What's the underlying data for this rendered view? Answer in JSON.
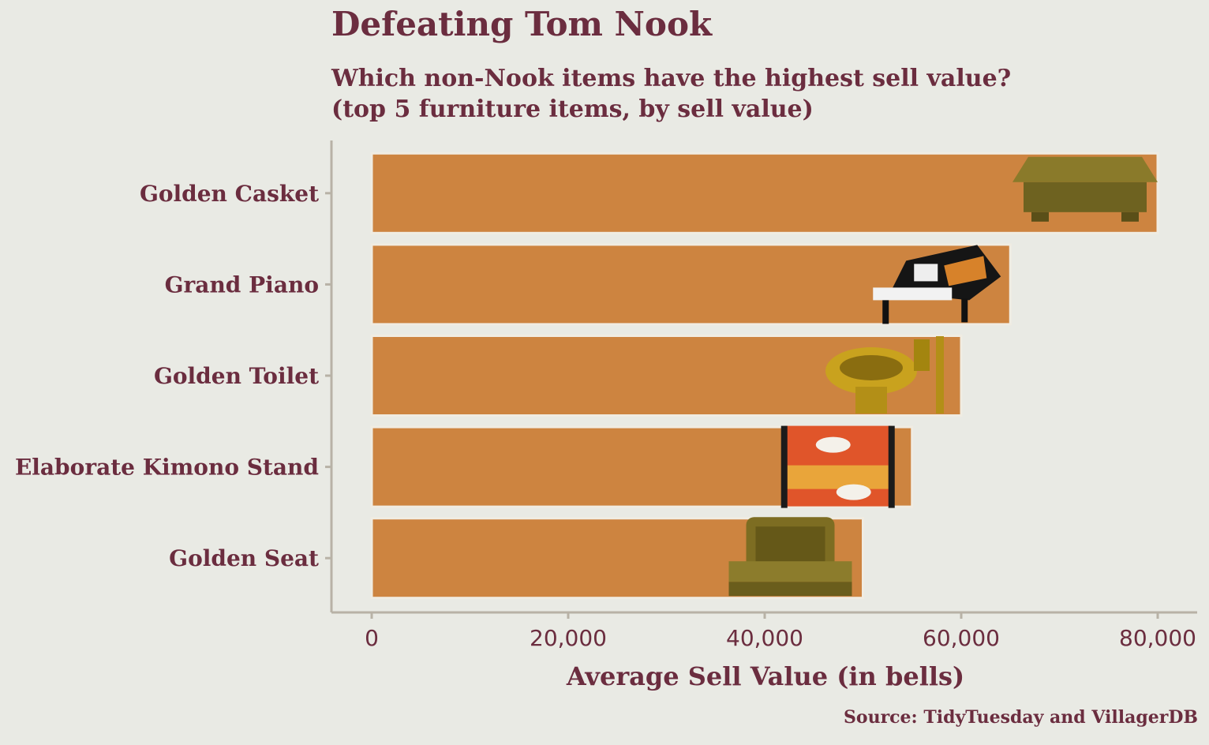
{
  "title": "Defeating Tom Nook",
  "subtitle_line1": "Which non-Nook items have the highest sell value?",
  "subtitle_line2": "(top 5 furniture items, by sell value)",
  "caption": "Source: TidyTuesday and VillagerDB",
  "colors": {
    "background": "#e9eae4",
    "bar": "#cd8440",
    "text": "#6b2d3f",
    "axis": "#b8b2a6"
  },
  "chart_data": {
    "type": "bar",
    "orientation": "horizontal",
    "categories": [
      "Golden Casket",
      "Grand Piano",
      "Golden Toilet",
      "Elaborate Kimono Stand",
      "Golden Seat"
    ],
    "values": [
      80000,
      65000,
      60000,
      55000,
      50000
    ],
    "icons": [
      "golden-casket-icon",
      "grand-piano-icon",
      "golden-toilet-icon",
      "kimono-stand-icon",
      "golden-seat-icon"
    ],
    "xlabel": "Average Sell Value (in bells)",
    "ylabel": "",
    "xlim": [
      0,
      80000
    ],
    "xticks": [
      0,
      20000,
      40000,
      60000,
      80000
    ],
    "xtick_labels": [
      "0",
      "20,000",
      "40,000",
      "60,000",
      "80,000"
    ],
    "grid": false
  }
}
